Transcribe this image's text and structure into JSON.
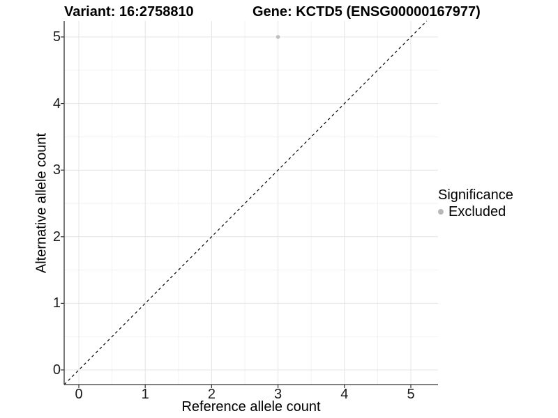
{
  "chart_data": {
    "type": "scatter",
    "title_left": "Variant: 16:2758810",
    "title_right": "Gene: KCTD5 (ENSG00000167977)",
    "xlabel": "Reference allele count",
    "ylabel": "Alternative allele count",
    "x_ticks": [
      0,
      1,
      2,
      3,
      4,
      5
    ],
    "y_ticks": [
      0,
      1,
      2,
      3,
      4,
      5
    ],
    "xlim": [
      -0.22,
      5.41
    ],
    "ylim": [
      -0.22,
      5.24
    ],
    "grid": {
      "major": true,
      "minor": true
    },
    "points": [
      {
        "x": 3,
        "y": 5,
        "series": "Excluded"
      }
    ],
    "identity_line": {
      "style": "dashed",
      "from": [
        -0.22,
        -0.22
      ],
      "to": [
        5.24,
        5.24
      ]
    },
    "legend": {
      "position": "right",
      "title": "Significance",
      "entries": [
        {
          "label": "Excluded",
          "color": "#b8b8b8"
        }
      ]
    },
    "colors": {
      "point": "#bfbfbf",
      "grid_major": "#e4e4e4",
      "grid_minor": "#f2f2f2",
      "axis_line": "#333333",
      "identity_line": "#000000",
      "background": "#ffffff"
    }
  }
}
